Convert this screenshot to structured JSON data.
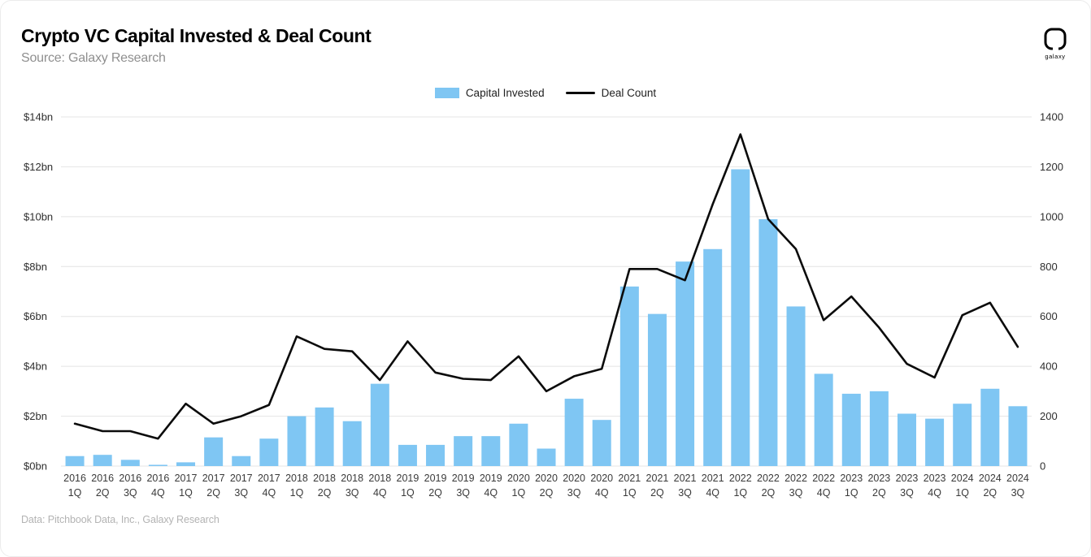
{
  "header": {
    "title": "Crypto VC Capital Invested & Deal Count",
    "subtitle": "Source: Galaxy Research",
    "logo_label": "galaxy"
  },
  "footer": {
    "text": "Data: Pitchbook Data, Inc., Galaxy Research"
  },
  "colors": {
    "bar": "#7FC6F3",
    "line": "#0B0B0B",
    "grid": "#E4E4E4",
    "axis_text": "#2E2E2E",
    "x_label_text": "#3A3A3A"
  },
  "chart_data": {
    "type": "bar",
    "subtype": "combo-bar-line-dual-axis",
    "title": "Crypto VC Capital Invested & Deal Count",
    "grid": "horizontal",
    "legend_position": "top-center",
    "categories": [
      "2016 1Q",
      "2016 2Q",
      "2016 3Q",
      "2016 4Q",
      "2017 1Q",
      "2017 2Q",
      "2017 3Q",
      "2017 4Q",
      "2018 1Q",
      "2018 2Q",
      "2018 3Q",
      "2018 4Q",
      "2019 1Q",
      "2019 2Q",
      "2019 3Q",
      "2019 4Q",
      "2020 1Q",
      "2020 2Q",
      "2020 3Q",
      "2020 4Q",
      "2021 1Q",
      "2021 2Q",
      "2021 3Q",
      "2021 4Q",
      "2022 1Q",
      "2022 2Q",
      "2022 3Q",
      "2022 4Q",
      "2023 1Q",
      "2023 2Q",
      "2023 3Q",
      "2023 4Q",
      "2024 1Q",
      "2024 2Q",
      "2024 3Q"
    ],
    "series": [
      {
        "name": "Capital Invested",
        "render": "bar",
        "axis": "left",
        "unit": "$bn",
        "values": [
          0.4,
          0.45,
          0.25,
          0.05,
          0.15,
          1.15,
          0.4,
          1.1,
          2.0,
          2.35,
          1.8,
          3.3,
          0.85,
          0.85,
          1.2,
          1.2,
          1.7,
          0.7,
          2.7,
          1.85,
          7.2,
          6.1,
          8.2,
          8.7,
          11.9,
          9.9,
          6.4,
          3.7,
          2.9,
          3.0,
          2.1,
          1.9,
          2.5,
          3.1,
          2.4
        ]
      },
      {
        "name": "Deal Count",
        "render": "line",
        "axis": "right",
        "unit": "deals",
        "values": [
          170,
          140,
          140,
          110,
          250,
          170,
          200,
          245,
          520,
          470,
          460,
          345,
          500,
          375,
          350,
          345,
          440,
          300,
          360,
          390,
          790,
          790,
          745,
          1050,
          1330,
          990,
          870,
          585,
          680,
          555,
          410,
          355,
          605,
          655,
          478
        ]
      }
    ],
    "left_axis": {
      "min": 0,
      "max": 14,
      "step": 2,
      "tick_labels": [
        "$0bn",
        "$2bn",
        "$4bn",
        "$6bn",
        "$8bn",
        "$10bn",
        "$12bn",
        "$14bn"
      ]
    },
    "right_axis": {
      "min": 0,
      "max": 1400,
      "step": 200,
      "tick_labels": [
        "0",
        "200",
        "400",
        "600",
        "800",
        "1000",
        "1200",
        "1400"
      ]
    }
  }
}
